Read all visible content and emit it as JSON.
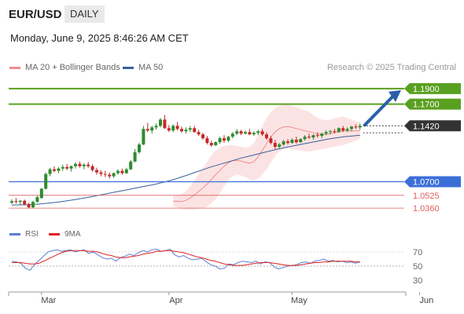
{
  "header": {
    "pair": "EUR/USD",
    "timeframe": "DAILY"
  },
  "datetime": "Monday, June 9, 2025 8:46:26 AM CET",
  "legend": {
    "bb": {
      "label": "MA 20 + Bollinger Bands",
      "color": "#f08c8c"
    },
    "ma50": {
      "label": "MA 50",
      "color": "#3a5f9e"
    },
    "credit": "Research © 2025 Trading Central"
  },
  "rsi_legend": {
    "rsi": {
      "label": "RSI",
      "color": "#5b7fd1"
    },
    "ma9": {
      "label": "9MA",
      "color": "#e02020"
    }
  },
  "colors": {
    "up": "#2e8b2e",
    "down": "#c62828",
    "resistance": "#5aa020",
    "support": "#3b6fd8",
    "target": "#e06060",
    "arrow": "#2b5fa8"
  },
  "chart_data": [
    {
      "type": "candlestick",
      "ylim": [
        1.025,
        1.205
      ],
      "x_tick_labels": [
        "Mar",
        "Apr",
        "May",
        "Jun"
      ],
      "x_tick_index": [
        7,
        37,
        66,
        96
      ],
      "candles": [
        [
          1.043,
          1.0475,
          1.041,
          1.045
        ],
        [
          1.045,
          1.049,
          1.042,
          1.044
        ],
        [
          1.044,
          1.0465,
          1.04,
          1.0455
        ],
        [
          1.0455,
          1.047,
          1.0395,
          1.041
        ],
        [
          1.041,
          1.043,
          1.0355,
          1.037
        ],
        [
          1.037,
          1.0455,
          1.036,
          1.044
        ],
        [
          1.044,
          1.052,
          1.043,
          1.05
        ],
        [
          1.049,
          1.062,
          1.048,
          1.061
        ],
        [
          1.061,
          1.082,
          1.06,
          1.08
        ],
        [
          1.08,
          1.088,
          1.077,
          1.086
        ],
        [
          1.086,
          1.09,
          1.082,
          1.084
        ],
        [
          1.084,
          1.089,
          1.081,
          1.087
        ],
        [
          1.087,
          1.092,
          1.084,
          1.089
        ],
        [
          1.089,
          1.093,
          1.085,
          1.087
        ],
        [
          1.087,
          1.091,
          1.083,
          1.09
        ],
        [
          1.09,
          1.095,
          1.087,
          1.093
        ],
        [
          1.093,
          1.096,
          1.088,
          1.09
        ],
        [
          1.09,
          1.094,
          1.086,
          1.092
        ],
        [
          1.092,
          1.0955,
          1.088,
          1.09
        ],
        [
          1.09,
          1.0925,
          1.083,
          1.085
        ],
        [
          1.085,
          1.088,
          1.079,
          1.082
        ],
        [
          1.082,
          1.085,
          1.077,
          1.08
        ],
        [
          1.08,
          1.084,
          1.076,
          1.079
        ],
        [
          1.079,
          1.082,
          1.074,
          1.077
        ],
        [
          1.077,
          1.082,
          1.075,
          1.081
        ],
        [
          1.081,
          1.086,
          1.079,
          1.084
        ],
        [
          1.084,
          1.087,
          1.079,
          1.081
        ],
        [
          1.081,
          1.088,
          1.08,
          1.086
        ],
        [
          1.086,
          1.098,
          1.085,
          1.096
        ],
        [
          1.096,
          1.112,
          1.095,
          1.108
        ],
        [
          1.108,
          1.12,
          1.106,
          1.118
        ],
        [
          1.118,
          1.142,
          1.117,
          1.138
        ],
        [
          1.138,
          1.146,
          1.134,
          1.136
        ],
        [
          1.136,
          1.142,
          1.132,
          1.14
        ],
        [
          1.14,
          1.145,
          1.137,
          1.142
        ],
        [
          1.142,
          1.152,
          1.14,
          1.15
        ],
        [
          1.15,
          1.156,
          1.138,
          1.139
        ],
        [
          1.139,
          1.143,
          1.134,
          1.136
        ],
        [
          1.136,
          1.144,
          1.134,
          1.142
        ],
        [
          1.142,
          1.147,
          1.136,
          1.138
        ],
        [
          1.138,
          1.141,
          1.133,
          1.135
        ],
        [
          1.135,
          1.14,
          1.132,
          1.137
        ],
        [
          1.137,
          1.142,
          1.134,
          1.139
        ],
        [
          1.139,
          1.142,
          1.133,
          1.134
        ],
        [
          1.134,
          1.137,
          1.129,
          1.131
        ],
        [
          1.131,
          1.133,
          1.124,
          1.126
        ],
        [
          1.126,
          1.129,
          1.118,
          1.12
        ],
        [
          1.12,
          1.123,
          1.115,
          1.117
        ],
        [
          1.117,
          1.122,
          1.116,
          1.121
        ],
        [
          1.121,
          1.128,
          1.119,
          1.126
        ],
        [
          1.126,
          1.13,
          1.12,
          1.123
        ],
        [
          1.123,
          1.129,
          1.121,
          1.128
        ],
        [
          1.128,
          1.134,
          1.126,
          1.132
        ],
        [
          1.132,
          1.138,
          1.13,
          1.135
        ],
        [
          1.135,
          1.137,
          1.13,
          1.132
        ],
        [
          1.132,
          1.136,
          1.131,
          1.134
        ],
        [
          1.134,
          1.138,
          1.13,
          1.131
        ],
        [
          1.131,
          1.135,
          1.129,
          1.133
        ],
        [
          1.133,
          1.137,
          1.13,
          1.135
        ],
        [
          1.135,
          1.138,
          1.129,
          1.131
        ],
        [
          1.131,
          1.134,
          1.124,
          1.126
        ],
        [
          1.126,
          1.129,
          1.118,
          1.12
        ],
        [
          1.12,
          1.124,
          1.112,
          1.115
        ],
        [
          1.115,
          1.12,
          1.112,
          1.118
        ],
        [
          1.118,
          1.124,
          1.116,
          1.122
        ],
        [
          1.122,
          1.125,
          1.118,
          1.12
        ],
        [
          1.12,
          1.126,
          1.119,
          1.124
        ],
        [
          1.124,
          1.128,
          1.119,
          1.121
        ],
        [
          1.121,
          1.126,
          1.12,
          1.125
        ],
        [
          1.125,
          1.13,
          1.123,
          1.128
        ],
        [
          1.128,
          1.132,
          1.125,
          1.127
        ],
        [
          1.127,
          1.131,
          1.124,
          1.13
        ],
        [
          1.13,
          1.134,
          1.127,
          1.129
        ],
        [
          1.129,
          1.133,
          1.126,
          1.132
        ],
        [
          1.132,
          1.136,
          1.13,
          1.134
        ],
        [
          1.134,
          1.137,
          1.131,
          1.135
        ],
        [
          1.135,
          1.138,
          1.132,
          1.134
        ],
        [
          1.134,
          1.14,
          1.133,
          1.139
        ],
        [
          1.139,
          1.142,
          1.134,
          1.136
        ],
        [
          1.136,
          1.14,
          1.134,
          1.138
        ],
        [
          1.138,
          1.142,
          1.135,
          1.141
        ],
        [
          1.141,
          1.144,
          1.138,
          1.14
        ],
        [
          1.14,
          1.145,
          1.137,
          1.142
        ]
      ],
      "bands": {
        "upper": [
          1.052,
          1.0525,
          1.054,
          1.058,
          1.064,
          1.072,
          1.08,
          1.088,
          1.096,
          1.104,
          1.11,
          1.114,
          1.116,
          1.117,
          1.117,
          1.116,
          1.115,
          1.114,
          1.115,
          1.12,
          1.13,
          1.142,
          1.152,
          1.16,
          1.165,
          1.168,
          1.169,
          1.169,
          1.168,
          1.166,
          1.164,
          1.162,
          1.16,
          1.156,
          1.152,
          1.15,
          1.149,
          1.15,
          1.152,
          1.153,
          1.154,
          1.152,
          1.15,
          1.148,
          1.147
        ],
        "lower": [
          1.038,
          1.037,
          1.035,
          1.034,
          1.034,
          1.0345,
          1.035,
          1.036,
          1.038,
          1.042,
          1.048,
          1.055,
          1.064,
          1.072,
          1.077,
          1.079,
          1.078,
          1.076,
          1.073,
          1.072,
          1.074,
          1.079,
          1.086,
          1.095,
          1.103,
          1.109,
          1.112,
          1.113,
          1.112,
          1.111,
          1.11,
          1.109,
          1.109,
          1.11,
          1.111,
          1.112,
          1.113,
          1.114,
          1.115,
          1.116,
          1.117,
          1.119,
          1.121,
          1.123,
          1.125
        ],
        "ma20": [
          1.045,
          1.0448,
          1.0445,
          1.046,
          1.049,
          1.053,
          1.0575,
          1.062,
          1.067,
          1.073,
          1.079,
          1.0845,
          1.09,
          1.0945,
          1.097,
          1.0975,
          1.0965,
          1.095,
          1.094,
          1.096,
          1.102,
          1.1105,
          1.119,
          1.1275,
          1.134,
          1.1385,
          1.1405,
          1.141,
          1.14,
          1.1385,
          1.137,
          1.1355,
          1.1345,
          1.133,
          1.1315,
          1.131,
          1.131,
          1.132,
          1.1335,
          1.1345,
          1.1355,
          1.1355,
          1.1355,
          1.1355,
          1.136
        ]
      },
      "ma50": [
        1.04,
        1.0402,
        1.0405,
        1.041,
        1.0418,
        1.0428,
        1.044,
        1.0455,
        1.047,
        1.0488,
        1.0505,
        1.0525,
        1.0545,
        1.0565,
        1.0585,
        1.0605,
        1.0625,
        1.0645,
        1.0665,
        1.069,
        1.0715,
        1.0745,
        1.078,
        1.0815,
        1.085,
        1.0885,
        1.0915,
        1.0945,
        1.0975,
        1.1005,
        1.103,
        1.1055,
        1.108,
        1.1105,
        1.113,
        1.115,
        1.117,
        1.119,
        1.121,
        1.123,
        1.125,
        1.1265,
        1.128,
        1.129,
        1.13
      ],
      "levels": [
        {
          "value": 1.19,
          "label": "1.1900",
          "kind": "resistance"
        },
        {
          "value": 1.17,
          "label": "1.1700",
          "kind": "resistance"
        },
        {
          "value": 1.142,
          "label": "1.1420",
          "kind": "last"
        },
        {
          "value": 1.07,
          "label": "1.0700",
          "kind": "pivot"
        },
        {
          "value": 1.0525,
          "label": "1.0525",
          "kind": "support"
        },
        {
          "value": 1.036,
          "label": "1.0360",
          "kind": "support"
        }
      ],
      "arrow": {
        "from": 1.143,
        "to": 1.19
      }
    },
    {
      "type": "line",
      "ylim": [
        20,
        80
      ],
      "y_tick_values": [
        70,
        50,
        30
      ],
      "y_tick_labels": [
        "70",
        "50",
        "30"
      ],
      "series": [
        {
          "name": "RSI",
          "values": [
            57,
            56,
            54,
            47,
            44,
            52,
            58,
            64,
            70,
            72,
            73,
            71,
            72,
            73,
            70,
            72,
            73,
            68,
            70,
            66,
            62,
            60,
            61,
            57,
            62,
            64,
            67,
            65,
            69,
            72,
            70,
            73,
            74,
            71,
            72,
            74,
            66,
            63,
            65,
            61,
            59,
            60,
            61,
            56,
            52,
            50,
            46,
            47,
            53,
            52,
            55,
            57,
            56,
            55,
            57,
            53,
            56,
            55,
            49,
            46,
            48,
            50,
            51,
            52,
            55,
            56,
            54,
            57,
            58,
            60,
            57,
            58,
            56,
            57,
            55,
            56,
            54,
            56
          ]
        },
        {
          "name": "9MA",
          "values": [
            55,
            55,
            55,
            54,
            53,
            53,
            54,
            57,
            60,
            63,
            66,
            69,
            71,
            72,
            72,
            72,
            72,
            71,
            71,
            70,
            68,
            66,
            65,
            63,
            62,
            62,
            63,
            64,
            65,
            67,
            68,
            69,
            71,
            71,
            72,
            72,
            71,
            70,
            69,
            67,
            65,
            63,
            62,
            60,
            58,
            57,
            55,
            53,
            52,
            51,
            51,
            51,
            52,
            53,
            54,
            55,
            55,
            55,
            54,
            53,
            52,
            51,
            51,
            51,
            52,
            53,
            54,
            55,
            55,
            56,
            56,
            57,
            57,
            57,
            57,
            57,
            56,
            56
          ]
        }
      ]
    }
  ]
}
